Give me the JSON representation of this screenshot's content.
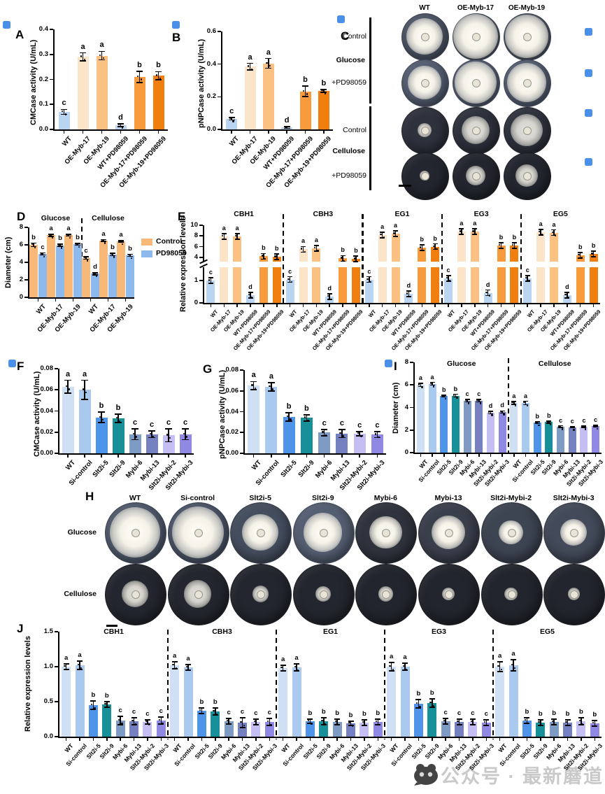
{
  "watermark": {
    "text": "公众号 · 最新蘑道"
  },
  "palettes": {
    "oe_bars": [
      "#b9d5f1",
      "#fce4c9",
      "#fac183",
      "#b9d5f1",
      "#f89b3d",
      "#f07f10"
    ],
    "si_bars": [
      "#cfe0f4",
      "#a9c9ee",
      "#4e95e9",
      "#179099",
      "#7e9cc3",
      "#7580c1",
      "#c5bef2",
      "#9089e3"
    ],
    "control": "#f8b878",
    "pd98059": "#8db9ed",
    "placeholder_square": "#4a8fe8"
  },
  "categories": {
    "oe": [
      "WT",
      "OE-Myb-17",
      "OE-Myb-19",
      "WT+PD98059",
      "OE-Myb-17+PD98059",
      "OE-Myb-19+PD98059"
    ],
    "si": [
      "WT",
      "Si-control",
      "Slt2i-5",
      "Slt2i-9",
      "Mybi-6",
      "Mybi-13",
      "Slt2i-Mybi-2",
      "Slt2i-Mybi-3"
    ]
  },
  "artifacts": {
    "blue_squares": [
      [
        4,
        30
      ],
      [
        246,
        30
      ],
      [
        482,
        22
      ],
      [
        836,
        40
      ],
      [
        836,
        99
      ],
      [
        836,
        156
      ],
      [
        836,
        226
      ],
      [
        12,
        514
      ],
      [
        550,
        514
      ]
    ]
  },
  "chart_data": [
    {
      "panel": "A",
      "type": "bar",
      "ylabel": "CMCase activity (U/mL)",
      "ylim": [
        0,
        0.4
      ],
      "yticks": [
        [
          0,
          "0.0"
        ],
        [
          0.1,
          "0.1"
        ],
        [
          0.2,
          "0.2"
        ],
        [
          0.3,
          "0.3"
        ],
        [
          0.4,
          "0.4"
        ]
      ],
      "categories_key": "oe",
      "values": [
        0.07,
        0.29,
        0.295,
        0.017,
        0.21,
        0.215
      ],
      "errors": [
        0.01,
        0.016,
        0.017,
        0.006,
        0.022,
        0.016
      ],
      "letters": [
        "c",
        "a",
        "a",
        "d",
        "b",
        "b"
      ]
    },
    {
      "panel": "B",
      "type": "bar",
      "ylabel": "pNPCase activity (U/mL)",
      "ylim": [
        0,
        0.6
      ],
      "yticks": [
        [
          0,
          "0.0"
        ],
        [
          0.2,
          "0.2"
        ],
        [
          0.4,
          "0.4"
        ],
        [
          0.6,
          "0.6"
        ]
      ],
      "categories_key": "oe",
      "values": [
        0.065,
        0.385,
        0.405,
        0.012,
        0.233,
        0.236
      ],
      "errors": [
        0.007,
        0.02,
        0.03,
        0.005,
        0.032,
        0.008
      ],
      "letters": [
        "c",
        "a",
        "a",
        "d",
        "b",
        "b"
      ]
    },
    {
      "panel": "C",
      "type": "photo-grid",
      "columns": [
        "WT",
        "OE-Myb-17",
        "OE-Myb-19"
      ],
      "row_groups": [
        {
          "medium": "Glucose",
          "rows": [
            "Control",
            "+PD98059"
          ]
        },
        {
          "medium": "Cellulose",
          "rows": [
            "Control",
            "+PD98059"
          ]
        }
      ],
      "colony_sizes": [
        [
          0.8,
          0.97,
          0.93
        ],
        [
          0.72,
          0.9,
          0.85
        ],
        [
          0.3,
          0.6,
          0.7
        ],
        [
          0.22,
          0.42,
          0.48
        ]
      ],
      "dish_colors": [
        "#4d5668",
        "#555f73",
        "#2e323d",
        "#23262f"
      ]
    },
    {
      "panel": "D",
      "type": "grouped-bar",
      "ylabel": "Diameter (cm)",
      "ylim": [
        0,
        8
      ],
      "yticks": [
        [
          0,
          "0"
        ],
        [
          2,
          "2"
        ],
        [
          4,
          "4"
        ],
        [
          6,
          "6"
        ],
        [
          8,
          "8"
        ]
      ],
      "legend": [
        {
          "label": "Control",
          "color_key": "control"
        },
        {
          "label": "PD98059",
          "color_key": "pd98059"
        }
      ],
      "sections": [
        {
          "title": "Glucose",
          "categories": [
            "WT",
            "OE-Myb-17",
            "OE-Myb-19"
          ],
          "control": [
            6.0,
            7.1,
            7.1
          ],
          "pd98059": [
            4.95,
            5.95,
            6.05
          ],
          "errors_control": [
            0.2,
            0.12,
            0.1
          ],
          "errors_pd": [
            0.12,
            0.12,
            0.1
          ],
          "letters_control": [
            "b",
            "a",
            "a"
          ],
          "letters_pd": [
            "c",
            "b",
            "b"
          ]
        },
        {
          "title": "Cellulose",
          "categories": [
            "WT",
            "OE-Myb-17",
            "OE-Myb-19"
          ],
          "control": [
            4.5,
            6.5,
            6.4
          ],
          "pd98059": [
            2.7,
            4.9,
            4.8
          ],
          "errors_control": [
            0.15,
            0.1,
            0.1
          ],
          "errors_pd": [
            0.12,
            0.15,
            0.12
          ],
          "letters_control": [
            "c",
            "a",
            "a"
          ],
          "letters_pd": [
            "d",
            "b",
            "b"
          ]
        }
      ]
    },
    {
      "panel": "E",
      "type": "bar-broken-axis",
      "ylabel": "Relative expression levels",
      "ylim": [
        0,
        10
      ],
      "axis_break": [
        1.6,
        3.2
      ],
      "yticks_lower": [
        [
          0,
          "0"
        ],
        [
          1,
          "1"
        ]
      ],
      "yticks_upper": [
        [
          4,
          "4"
        ],
        [
          6,
          "6"
        ],
        [
          8,
          "8"
        ],
        [
          10,
          "10"
        ]
      ],
      "categories_key": "oe",
      "genes": [
        {
          "name": "CBH1",
          "values": [
            1.0,
            7.9,
            7.9,
            0.35,
            4.2,
            4.1
          ],
          "errors": [
            0.15,
            0.3,
            0.3,
            0.08,
            0.25,
            0.2
          ],
          "letters": [
            "c",
            "a",
            "a",
            "d",
            "b",
            "b"
          ]
        },
        {
          "name": "CBH3",
          "values": [
            1.05,
            5.5,
            5.7,
            0.28,
            3.8,
            3.7
          ],
          "errors": [
            0.2,
            0.35,
            0.25,
            0.08,
            0.35,
            0.25
          ],
          "letters": [
            "c",
            "a",
            "a",
            "d",
            "b",
            "b"
          ]
        },
        {
          "name": "EG1",
          "values": [
            1.05,
            8.2,
            8.4,
            0.4,
            5.8,
            6.0
          ],
          "errors": [
            0.2,
            0.3,
            0.4,
            0.1,
            0.3,
            0.25
          ],
          "letters": [
            "c",
            "a",
            "a",
            "d",
            "b",
            "b"
          ]
        },
        {
          "name": "EG3",
          "values": [
            1.1,
            8.8,
            8.8,
            0.45,
            6.2,
            6.2
          ],
          "errors": [
            0.25,
            0.3,
            0.3,
            0.12,
            0.4,
            0.2
          ],
          "letters": [
            "c",
            "a",
            "a",
            "d",
            "b",
            "b"
          ]
        },
        {
          "name": "EG5",
          "values": [
            1.1,
            8.7,
            8.6,
            0.35,
            4.4,
            4.6
          ],
          "errors": [
            0.2,
            0.25,
            0.45,
            0.08,
            0.3,
            0.35
          ],
          "letters": [
            "c",
            "a",
            "a",
            "d",
            "b",
            "b"
          ]
        }
      ]
    },
    {
      "panel": "F",
      "type": "bar",
      "ylabel": "CMCase activity (U/mL)",
      "ylim": [
        0,
        0.08
      ],
      "yticks": [
        [
          0,
          "0.00"
        ],
        [
          0.02,
          "0.02"
        ],
        [
          0.04,
          "0.04"
        ],
        [
          0.06,
          "0.06"
        ],
        [
          0.08,
          "0.08"
        ]
      ],
      "categories_key": "si",
      "values": [
        0.063,
        0.06,
        0.034,
        0.033,
        0.018,
        0.018,
        0.017,
        0.018
      ],
      "errors": [
        0.006,
        0.009,
        0.005,
        0.004,
        0.005,
        0.003,
        0.006,
        0.005
      ],
      "letters": [
        "a",
        "a",
        "b",
        "b",
        "c",
        "c",
        "c",
        "c"
      ]
    },
    {
      "panel": "G",
      "type": "bar",
      "ylabel": "pNPCase activity (U/mL)",
      "ylim": [
        0,
        0.08
      ],
      "yticks": [
        [
          0,
          "0.00"
        ],
        [
          0.02,
          "0.02"
        ],
        [
          0.04,
          "0.04"
        ],
        [
          0.06,
          "0.06"
        ],
        [
          0.08,
          "0.08"
        ]
      ],
      "categories_key": "si",
      "values": [
        0.065,
        0.064,
        0.035,
        0.034,
        0.02,
        0.019,
        0.019,
        0.018
      ],
      "errors": [
        0.004,
        0.004,
        0.004,
        0.003,
        0.003,
        0.004,
        0.002,
        0.003
      ],
      "letters": [
        "a",
        "a",
        "b",
        "b",
        "c",
        "c",
        "c",
        "c"
      ]
    },
    {
      "panel": "H",
      "type": "photo-grid",
      "columns": [
        "WT",
        "Si-control",
        "Slt2i-5",
        "Slt2i-9",
        "Mybi-6",
        "Mybi-13",
        "Slt2i-Mybi-2",
        "Slt2i-Mybi-3"
      ],
      "rows": [
        "Glucose",
        "Cellulose"
      ],
      "colony_sizes": [
        [
          0.84,
          0.86,
          0.6,
          0.64,
          0.54,
          0.56,
          0.4,
          0.44
        ],
        [
          0.44,
          0.46,
          0.27,
          0.25,
          0.25,
          0.22,
          0.22,
          0.2
        ]
      ],
      "dish_colors_rows": [
        [
          "#505a6d",
          "#4b5569",
          "#454e5f",
          "#555f73",
          "#2f333d",
          "#3a3f4c",
          "#3d4452",
          "#434a59"
        ],
        [
          "#23262e",
          "#23262e",
          "#23262e",
          "#23262e",
          "#22252d",
          "#22252d",
          "#22252d",
          "#22252d"
        ]
      ]
    },
    {
      "panel": "I",
      "type": "grouped-bar",
      "ylabel": "Diameter (cm)",
      "ylim": [
        0,
        8
      ],
      "yticks": [
        [
          0,
          "0"
        ],
        [
          2,
          "2"
        ],
        [
          4,
          "4"
        ],
        [
          6,
          "6"
        ],
        [
          8,
          "8"
        ]
      ],
      "categories_key": "si",
      "sections": [
        {
          "title": "Glucose",
          "values": [
            6.0,
            6.1,
            5.0,
            5.05,
            4.6,
            4.6,
            3.55,
            3.6
          ],
          "errors": [
            0.15,
            0.12,
            0.08,
            0.12,
            0.1,
            0.1,
            0.12,
            0.1
          ],
          "letters": [
            "a",
            "a",
            "b",
            "b",
            "c",
            "c",
            "d",
            "d"
          ]
        },
        {
          "title": "Cellulose",
          "values": [
            4.4,
            4.4,
            2.65,
            2.7,
            2.3,
            2.25,
            2.3,
            2.35
          ],
          "errors": [
            0.12,
            0.15,
            0.08,
            0.08,
            0.08,
            0.06,
            0.06,
            0.06
          ],
          "letters": [
            "a",
            "a",
            "b",
            "b",
            "c",
            "c",
            "c",
            "c"
          ]
        }
      ]
    },
    {
      "panel": "J",
      "type": "bar-groups",
      "ylabel": "Relative expression levels",
      "ylim": [
        0,
        1.5
      ],
      "yticks": [
        [
          0,
          "0.0"
        ],
        [
          0.5,
          "0.5"
        ],
        [
          1,
          "1.0"
        ],
        [
          1.5,
          "1.5"
        ]
      ],
      "categories_key": "si",
      "genes": [
        {
          "name": "CBH1",
          "values": [
            1.0,
            1.02,
            0.45,
            0.46,
            0.23,
            0.22,
            0.21,
            0.23
          ],
          "errors": [
            0.04,
            0.06,
            0.06,
            0.04,
            0.06,
            0.05,
            0.03,
            0.05
          ],
          "letters": [
            "a",
            "a",
            "b",
            "b",
            "c",
            "c",
            "c",
            "c"
          ]
        },
        {
          "name": "CBH3",
          "values": [
            1.02,
            0.99,
            0.37,
            0.36,
            0.22,
            0.2,
            0.21,
            0.21
          ],
          "errors": [
            0.05,
            0.04,
            0.04,
            0.05,
            0.04,
            0.07,
            0.04,
            0.05
          ],
          "letters": [
            "a",
            "a",
            "b",
            "b",
            "c",
            "c",
            "c",
            "c"
          ]
        },
        {
          "name": "EG1",
          "values": [
            0.98,
            0.99,
            0.22,
            0.22,
            0.21,
            0.19,
            0.2,
            0.21
          ],
          "errors": [
            0.04,
            0.05,
            0.03,
            0.05,
            0.04,
            0.03,
            0.04,
            0.04
          ],
          "letters": [
            "a",
            "a",
            "b",
            "b",
            "b",
            "b",
            "b",
            "b"
          ]
        },
        {
          "name": "EG3",
          "values": [
            1.0,
            1.0,
            0.47,
            0.48,
            0.22,
            0.21,
            0.21,
            0.2
          ],
          "errors": [
            0.06,
            0.05,
            0.06,
            0.06,
            0.04,
            0.04,
            0.04,
            0.04
          ],
          "letters": [
            "a",
            "a",
            "b",
            "b",
            "c",
            "c",
            "c",
            "c"
          ]
        },
        {
          "name": "EG5",
          "values": [
            1.0,
            1.02,
            0.23,
            0.2,
            0.21,
            0.2,
            0.22,
            0.19
          ],
          "errors": [
            0.07,
            0.08,
            0.04,
            0.04,
            0.04,
            0.04,
            0.05,
            0.04
          ],
          "letters": [
            "a",
            "a",
            "b",
            "b",
            "b",
            "b",
            "b",
            "b"
          ]
        }
      ]
    }
  ]
}
